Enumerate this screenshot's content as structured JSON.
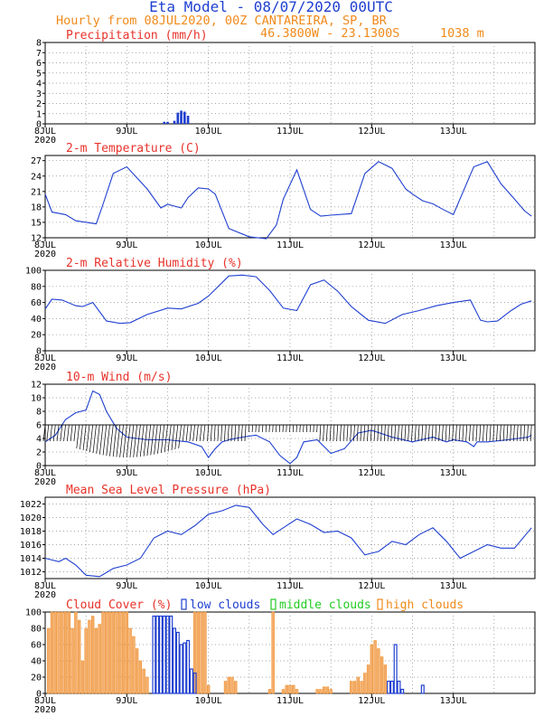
{
  "header": {
    "title": "Eta Model - 08/07/2020 00UTC",
    "subtitle": "Hourly from 08JUL2020, 00Z  CANTAREIRA, SP, BR",
    "coords": "46.3800W - 23.1300S",
    "elevation": "1038  m"
  },
  "colors": {
    "title": "#1f3fd0",
    "header": "#f08a1a",
    "panel_title": "#e8322a",
    "series_line": "#1f3fd0",
    "low_clouds": "#1f3fd0",
    "middle_clouds": "#22cc22",
    "high_clouds": "#f08a1a",
    "wind_barbs": "#000000"
  },
  "axis": {
    "day_labels": [
      "8JUL",
      "9JUL",
      "10JUL",
      "11JUL",
      "12JUL",
      "13JUL"
    ],
    "year_label": "2020"
  },
  "legend": {
    "low": "low clouds",
    "middle": "middle clouds",
    "high": "high clouds"
  },
  "chart_data": [
    {
      "type": "bar",
      "title": "Precipitation (mm/h)",
      "ylim": [
        0,
        8
      ],
      "yticks": [
        0,
        1,
        2,
        3,
        4,
        5,
        6,
        7,
        8
      ],
      "x_hours": [
        35,
        36,
        38,
        39,
        40,
        41,
        42
      ],
      "values": [
        0.2,
        0.2,
        0.3,
        1.1,
        1.3,
        1.2,
        0.8
      ]
    },
    {
      "type": "line",
      "title": "2-m Temperature (C)",
      "ylim": [
        12,
        28
      ],
      "yticks": [
        12,
        15,
        18,
        21,
        24,
        27
      ],
      "x_hours": [
        0,
        2,
        6,
        9,
        12,
        15,
        17,
        20,
        24,
        30,
        34,
        36,
        40,
        42,
        45,
        48,
        50,
        54,
        60,
        65,
        68,
        70,
        74,
        78,
        81,
        84,
        90,
        94,
        98,
        102,
        106,
        108,
        111,
        114,
        117,
        120,
        126,
        130,
        134,
        138,
        141,
        143
      ],
      "values": [
        20.5,
        17,
        16.5,
        15.3,
        15,
        14.7,
        18.5,
        24.5,
        25.8,
        21.5,
        17.8,
        18.5,
        17.8,
        19.8,
        21.7,
        21.5,
        20.5,
        13.8,
        12.2,
        11.8,
        14.5,
        19.5,
        25.2,
        17.5,
        16.2,
        16.4,
        16.7,
        24.5,
        26.8,
        25.5,
        21.5,
        20.5,
        19.2,
        18.6,
        17.5,
        16.5,
        25.8,
        26.8,
        22.5,
        19.5,
        17.2,
        16.2
      ]
    },
    {
      "type": "line",
      "title": "2-m Relative Humidity (%)",
      "ylim": [
        0,
        100
      ],
      "yticks": [
        0,
        20,
        40,
        60,
        80,
        100
      ],
      "x_hours": [
        0,
        2,
        5,
        9,
        11,
        14,
        18,
        22,
        25,
        30,
        36,
        40,
        45,
        48,
        54,
        58,
        62,
        66,
        70,
        74,
        78,
        82,
        86,
        90,
        95,
        100,
        105,
        110,
        115,
        120,
        125,
        128,
        130,
        133,
        137,
        140,
        143
      ],
      "values": [
        52,
        64,
        63,
        56,
        55,
        60,
        37,
        34,
        35,
        45,
        53,
        52,
        59,
        68,
        93,
        94,
        92,
        75,
        53,
        50,
        82,
        88,
        74,
        55,
        38,
        34,
        45,
        50,
        56,
        60,
        63,
        38,
        36,
        37,
        50,
        58,
        62
      ]
    },
    {
      "type": "line",
      "title": "10-m Wind (m/s)",
      "ylim": [
        0,
        12
      ],
      "yticks": [
        0,
        2,
        4,
        6,
        8,
        10,
        12
      ],
      "x_hours": [
        0,
        3,
        6,
        9,
        12,
        14,
        16,
        18,
        21,
        24,
        30,
        36,
        42,
        46,
        48,
        50,
        52,
        54,
        58,
        62,
        66,
        69,
        72,
        74,
        76,
        80,
        84,
        88,
        92,
        96,
        102,
        108,
        114,
        118,
        120,
        124,
        126,
        127,
        130,
        136,
        142,
        143
      ],
      "values": [
        3.5,
        4.5,
        6.8,
        7.8,
        8.2,
        11,
        10.5,
        8,
        5.5,
        4.2,
        3.8,
        3.8,
        3.5,
        2.8,
        1.2,
        2.5,
        3.5,
        3.8,
        4.2,
        4.5,
        3.5,
        1.5,
        0.3,
        1.2,
        3.5,
        3.8,
        1.8,
        2.5,
        4.8,
        5.2,
        4.2,
        3.5,
        4.2,
        3.5,
        3.8,
        3.5,
        2.8,
        3.5,
        3.5,
        3.8,
        4.2,
        4.5
      ]
    },
    {
      "type": "line",
      "title": "Mean Sea Level Pressure (hPa)",
      "ylim": [
        1011,
        1023
      ],
      "yticks": [
        1012,
        1014,
        1016,
        1018,
        1020,
        1022
      ],
      "x_hours": [
        0,
        4,
        6,
        9,
        12,
        16,
        20,
        24,
        28,
        32,
        36,
        40,
        44,
        48,
        52,
        56,
        60,
        64,
        67,
        70,
        74,
        78,
        82,
        86,
        90,
        94,
        98,
        102,
        106,
        110,
        114,
        118,
        122,
        126,
        130,
        134,
        138,
        143
      ],
      "values": [
        1014,
        1013.5,
        1014,
        1013,
        1011.5,
        1011.3,
        1012.5,
        1013,
        1014,
        1017,
        1018,
        1017.5,
        1018.8,
        1020.5,
        1021,
        1021.8,
        1021.5,
        1019,
        1017.5,
        1018.5,
        1019.8,
        1019,
        1017.8,
        1018,
        1017,
        1014.5,
        1015,
        1016.5,
        1016,
        1017.5,
        1018.5,
        1016.5,
        1014,
        1015,
        1016,
        1015.5,
        1015.5,
        1018.5
      ]
    },
    {
      "type": "bar",
      "title": "Cloud Cover (%)",
      "ylim": [
        0,
        100
      ],
      "yticks": [
        0,
        20,
        40,
        60,
        80,
        100
      ],
      "high_clouds": {
        "x_hours": [
          1,
          2,
          3,
          4,
          5,
          6,
          7,
          8,
          9,
          10,
          11,
          12,
          13,
          14,
          15,
          16,
          17,
          18,
          19,
          20,
          21,
          22,
          23,
          24,
          25,
          26,
          27,
          28,
          29,
          30,
          44,
          45,
          46,
          47,
          48,
          53,
          54,
          55,
          56,
          66,
          67,
          70,
          71,
          72,
          73,
          74,
          80,
          81,
          82,
          83,
          84,
          90,
          91,
          92,
          93,
          94,
          95,
          96,
          97,
          98,
          99,
          100
        ],
        "values": [
          80,
          100,
          100,
          100,
          100,
          100,
          100,
          80,
          100,
          90,
          40,
          80,
          90,
          95,
          80,
          85,
          100,
          100,
          100,
          100,
          100,
          100,
          100,
          100,
          80,
          70,
          55,
          40,
          30,
          20,
          100,
          100,
          100,
          100,
          10,
          15,
          20,
          20,
          15,
          5,
          100,
          5,
          10,
          10,
          10,
          5,
          5,
          5,
          8,
          8,
          5,
          15,
          15,
          20,
          15,
          25,
          35,
          60,
          65,
          55,
          45,
          35
        ]
      },
      "low_clouds": {
        "x_hours": [
          32,
          33,
          34,
          35,
          36,
          37,
          38,
          39,
          40,
          41,
          42,
          43,
          44,
          101,
          102,
          103,
          104,
          105,
          111
        ],
        "values": [
          95,
          95,
          95,
          95,
          95,
          95,
          80,
          75,
          60,
          62,
          65,
          30,
          25,
          15,
          15,
          60,
          15,
          5,
          10
        ]
      },
      "middle_clouds": {
        "x_hours": [],
        "values": []
      }
    }
  ]
}
